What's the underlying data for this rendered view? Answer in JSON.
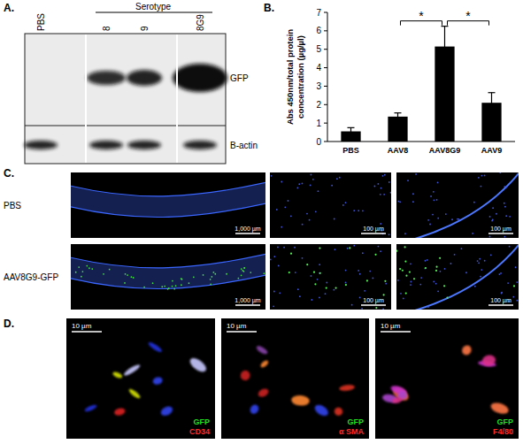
{
  "chart_data": {
    "type": "bar",
    "categories": [
      "PBS",
      "AAV8",
      "AAV8G9",
      "AAV9"
    ],
    "values": [
      0.55,
      1.35,
      5.15,
      2.1
    ],
    "error": [
      0.2,
      0.2,
      1.1,
      0.55
    ],
    "color": "#000000",
    "ylim": [
      0,
      7
    ],
    "yticks": [
      0,
      1,
      2,
      3,
      4,
      5,
      6,
      7
    ],
    "y_label": "Abs 450nm/total protein concentration (µg/µl)",
    "annotations": [
      {
        "text": "*",
        "between": [
          "AAV8",
          "AAV8G9"
        ]
      },
      {
        "text": "*",
        "between": [
          "AAV8G9",
          "AAV9"
        ]
      }
    ],
    "grid": false
  },
  "panel_labels": [
    "A.",
    "B.",
    "C.",
    "D."
  ],
  "blot": {
    "header": "Serotype",
    "lanes": [
      "PBS",
      "8",
      "9",
      "8G9"
    ],
    "rows": [
      "GFP",
      "B-actin"
    ]
  },
  "histology": {
    "rows": [
      "PBS",
      "AAV8G9-GFP"
    ],
    "scale_bars": [
      "1,000 µm",
      "100 µm",
      "100 µm"
    ]
  },
  "staining": {
    "panels": [
      {
        "scale_bar": "10 µm",
        "channels": [
          "GFP",
          "CD34"
        ]
      },
      {
        "scale_bar": "10 µm",
        "channels": [
          "GFP",
          "α SMA"
        ]
      },
      {
        "scale_bar": "10 µm",
        "channels": [
          "GFP",
          "F4/80"
        ]
      }
    ]
  }
}
